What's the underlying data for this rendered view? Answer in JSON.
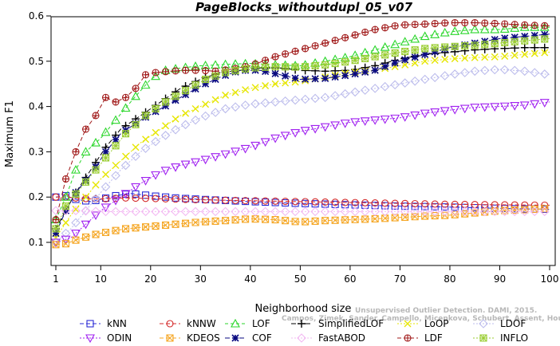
{
  "chart_data": {
    "type": "line",
    "title": "PageBlocks_withoutdupl_05_v07",
    "xlabel": "Neighborhood size",
    "ylabel": "Maximum F1",
    "xlim": [
      1,
      100
    ],
    "ylim": [
      0.05,
      0.6
    ],
    "xticks": [
      1,
      10,
      20,
      30,
      40,
      50,
      60,
      70,
      80,
      90,
      100
    ],
    "yticks": [
      0.1,
      0.2,
      0.3,
      0.4,
      0.5,
      0.6
    ],
    "watermark": {
      "line1": "Unsupervised Outlier Detection. DAMI, 2015.",
      "line2": "Campos, Zimek, Sander, Campello, Micenkova, Schubert, Assent, Houle"
    },
    "legend_placement": "bottom",
    "series": [
      {
        "name": "kNN",
        "color": "#2a2ad6",
        "marker": "square",
        "dash": "5,3",
        "points": [
          [
            1,
            0.2
          ],
          [
            3,
            0.203
          ],
          [
            5,
            0.195
          ],
          [
            8,
            0.19
          ],
          [
            10,
            0.195
          ],
          [
            13,
            0.203
          ],
          [
            16,
            0.208
          ],
          [
            20,
            0.203
          ],
          [
            25,
            0.198
          ],
          [
            30,
            0.195
          ],
          [
            40,
            0.19
          ],
          [
            50,
            0.186
          ],
          [
            60,
            0.183
          ],
          [
            70,
            0.18
          ],
          [
            80,
            0.178
          ],
          [
            90,
            0.175
          ],
          [
            100,
            0.173
          ]
        ]
      },
      {
        "name": "kNNW",
        "color": "#d42a2a",
        "marker": "circle",
        "dash": "5,3",
        "points": [
          [
            1,
            0.2
          ],
          [
            3,
            0.2
          ],
          [
            5,
            0.198
          ],
          [
            8,
            0.196
          ],
          [
            10,
            0.196
          ],
          [
            15,
            0.198
          ],
          [
            20,
            0.197
          ],
          [
            30,
            0.194
          ],
          [
            40,
            0.192
          ],
          [
            50,
            0.19
          ],
          [
            60,
            0.188
          ],
          [
            70,
            0.186
          ],
          [
            80,
            0.184
          ],
          [
            90,
            0.183
          ],
          [
            100,
            0.182
          ]
        ]
      },
      {
        "name": "LOF",
        "color": "#2ad62a",
        "marker": "triangle",
        "dash": "4,3",
        "points": [
          [
            1,
            0.15
          ],
          [
            3,
            0.2
          ],
          [
            5,
            0.26
          ],
          [
            7,
            0.3
          ],
          [
            10,
            0.33
          ],
          [
            13,
            0.37
          ],
          [
            16,
            0.41
          ],
          [
            20,
            0.46
          ],
          [
            23,
            0.48
          ],
          [
            26,
            0.485
          ],
          [
            30,
            0.49
          ],
          [
            35,
            0.493
          ],
          [
            40,
            0.495
          ],
          [
            45,
            0.492
          ],
          [
            50,
            0.49
          ],
          [
            55,
            0.5
          ],
          [
            60,
            0.51
          ],
          [
            65,
            0.525
          ],
          [
            70,
            0.54
          ],
          [
            75,
            0.555
          ],
          [
            80,
            0.565
          ],
          [
            85,
            0.57
          ],
          [
            90,
            0.57
          ],
          [
            95,
            0.575
          ],
          [
            100,
            0.575
          ]
        ]
      },
      {
        "name": "SimplifiedLOF",
        "color": "#000000",
        "marker": "plus",
        "dash": "6,3",
        "points": [
          [
            1,
            0.13
          ],
          [
            3,
            0.17
          ],
          [
            5,
            0.21
          ],
          [
            8,
            0.26
          ],
          [
            11,
            0.31
          ],
          [
            14,
            0.35
          ],
          [
            18,
            0.38
          ],
          [
            22,
            0.41
          ],
          [
            26,
            0.44
          ],
          [
            30,
            0.46
          ],
          [
            34,
            0.475
          ],
          [
            38,
            0.48
          ],
          [
            42,
            0.485
          ],
          [
            46,
            0.485
          ],
          [
            50,
            0.48
          ],
          [
            55,
            0.478
          ],
          [
            60,
            0.48
          ],
          [
            65,
            0.49
          ],
          [
            70,
            0.505
          ],
          [
            75,
            0.515
          ],
          [
            80,
            0.52
          ],
          [
            85,
            0.525
          ],
          [
            90,
            0.528
          ],
          [
            95,
            0.53
          ],
          [
            100,
            0.53
          ]
        ]
      },
      {
        "name": "LoOP",
        "color": "#e6e600",
        "marker": "x",
        "dash": "2,2",
        "points": [
          [
            1,
            0.11
          ],
          [
            4,
            0.16
          ],
          [
            7,
            0.2
          ],
          [
            10,
            0.24
          ],
          [
            14,
            0.28
          ],
          [
            18,
            0.32
          ],
          [
            22,
            0.35
          ],
          [
            26,
            0.38
          ],
          [
            30,
            0.4
          ],
          [
            35,
            0.425
          ],
          [
            40,
            0.44
          ],
          [
            45,
            0.45
          ],
          [
            50,
            0.455
          ],
          [
            55,
            0.465
          ],
          [
            60,
            0.475
          ],
          [
            65,
            0.48
          ],
          [
            70,
            0.49
          ],
          [
            75,
            0.5
          ],
          [
            80,
            0.505
          ],
          [
            85,
            0.508
          ],
          [
            90,
            0.51
          ],
          [
            95,
            0.515
          ],
          [
            100,
            0.52
          ]
        ]
      },
      {
        "name": "LDOF",
        "color": "#bcbcec",
        "marker": "diamond",
        "dash": "2,2",
        "points": [
          [
            1,
            0.1
          ],
          [
            4,
            0.13
          ],
          [
            7,
            0.17
          ],
          [
            10,
            0.21
          ],
          [
            14,
            0.26
          ],
          [
            18,
            0.3
          ],
          [
            22,
            0.33
          ],
          [
            26,
            0.355
          ],
          [
            30,
            0.375
          ],
          [
            35,
            0.395
          ],
          [
            40,
            0.405
          ],
          [
            45,
            0.41
          ],
          [
            50,
            0.415
          ],
          [
            55,
            0.42
          ],
          [
            60,
            0.43
          ],
          [
            65,
            0.44
          ],
          [
            70,
            0.45
          ],
          [
            75,
            0.46
          ],
          [
            80,
            0.47
          ],
          [
            85,
            0.478
          ],
          [
            90,
            0.482
          ],
          [
            95,
            0.478
          ],
          [
            100,
            0.47
          ]
        ]
      },
      {
        "name": "ODIN",
        "color": "#a020f0",
        "marker": "tri-down",
        "dash": "2,2",
        "points": [
          [
            1,
            0.1
          ],
          [
            4,
            0.11
          ],
          [
            7,
            0.14
          ],
          [
            10,
            0.17
          ],
          [
            14,
            0.2
          ],
          [
            18,
            0.23
          ],
          [
            22,
            0.255
          ],
          [
            26,
            0.27
          ],
          [
            30,
            0.28
          ],
          [
            35,
            0.295
          ],
          [
            40,
            0.31
          ],
          [
            45,
            0.33
          ],
          [
            50,
            0.345
          ],
          [
            55,
            0.355
          ],
          [
            60,
            0.365
          ],
          [
            65,
            0.37
          ],
          [
            70,
            0.375
          ],
          [
            75,
            0.385
          ],
          [
            80,
            0.392
          ],
          [
            85,
            0.398
          ],
          [
            90,
            0.4
          ],
          [
            95,
            0.403
          ],
          [
            100,
            0.41
          ]
        ]
      },
      {
        "name": "KDEOS",
        "color": "#f5a623",
        "marker": "square-x",
        "dash": "5,3",
        "points": [
          [
            1,
            0.095
          ],
          [
            3,
            0.097
          ],
          [
            5,
            0.105
          ],
          [
            8,
            0.115
          ],
          [
            10,
            0.12
          ],
          [
            15,
            0.13
          ],
          [
            20,
            0.135
          ],
          [
            25,
            0.14
          ],
          [
            30,
            0.145
          ],
          [
            35,
            0.148
          ],
          [
            40,
            0.152
          ],
          [
            45,
            0.15
          ],
          [
            50,
            0.145
          ],
          [
            55,
            0.148
          ],
          [
            60,
            0.15
          ],
          [
            65,
            0.152
          ],
          [
            70,
            0.155
          ],
          [
            75,
            0.158
          ],
          [
            80,
            0.16
          ],
          [
            85,
            0.165
          ],
          [
            90,
            0.17
          ],
          [
            95,
            0.172
          ],
          [
            100,
            0.175
          ]
        ]
      },
      {
        "name": "COF",
        "color": "#0a0a80",
        "marker": "star",
        "dash": "6,3",
        "points": [
          [
            1,
            0.12
          ],
          [
            3,
            0.17
          ],
          [
            5,
            0.21
          ],
          [
            8,
            0.25
          ],
          [
            11,
            0.3
          ],
          [
            14,
            0.34
          ],
          [
            18,
            0.37
          ],
          [
            22,
            0.395
          ],
          [
            26,
            0.42
          ],
          [
            30,
            0.445
          ],
          [
            34,
            0.465
          ],
          [
            38,
            0.48
          ],
          [
            42,
            0.48
          ],
          [
            46,
            0.47
          ],
          [
            50,
            0.46
          ],
          [
            55,
            0.462
          ],
          [
            60,
            0.47
          ],
          [
            65,
            0.48
          ],
          [
            70,
            0.5
          ],
          [
            75,
            0.515
          ],
          [
            80,
            0.53
          ],
          [
            85,
            0.54
          ],
          [
            90,
            0.55
          ],
          [
            95,
            0.555
          ],
          [
            100,
            0.56
          ]
        ]
      },
      {
        "name": "FastABOD",
        "color": "#f2b8f2",
        "marker": "diamond",
        "dash": "2,2",
        "points": [
          [
            1,
            0.17
          ],
          [
            5,
            0.17
          ],
          [
            10,
            0.168
          ],
          [
            20,
            0.168
          ],
          [
            30,
            0.168
          ],
          [
            40,
            0.168
          ],
          [
            50,
            0.168
          ],
          [
            60,
            0.168
          ],
          [
            70,
            0.168
          ],
          [
            80,
            0.168
          ],
          [
            90,
            0.168
          ],
          [
            100,
            0.168
          ]
        ]
      },
      {
        "name": "LDF",
        "color": "#a01818",
        "marker": "circle-plus",
        "dash": "5,3",
        "points": [
          [
            1,
            0.15
          ],
          [
            3,
            0.24
          ],
          [
            5,
            0.3
          ],
          [
            7,
            0.35
          ],
          [
            9,
            0.38
          ],
          [
            11,
            0.42
          ],
          [
            13,
            0.41
          ],
          [
            15,
            0.42
          ],
          [
            17,
            0.44
          ],
          [
            19,
            0.47
          ],
          [
            21,
            0.475
          ],
          [
            24,
            0.478
          ],
          [
            27,
            0.48
          ],
          [
            30,
            0.48
          ],
          [
            33,
            0.478
          ],
          [
            36,
            0.482
          ],
          [
            40,
            0.49
          ],
          [
            45,
            0.51
          ],
          [
            50,
            0.525
          ],
          [
            55,
            0.54
          ],
          [
            60,
            0.555
          ],
          [
            65,
            0.57
          ],
          [
            70,
            0.58
          ],
          [
            75,
            0.582
          ],
          [
            80,
            0.585
          ],
          [
            85,
            0.585
          ],
          [
            90,
            0.583
          ],
          [
            95,
            0.58
          ],
          [
            100,
            0.578
          ]
        ]
      },
      {
        "name": "INFLO",
        "color": "#9acd32",
        "marker": "square-star",
        "dash": "2,2",
        "points": [
          [
            1,
            0.13
          ],
          [
            3,
            0.18
          ],
          [
            6,
            0.22
          ],
          [
            9,
            0.26
          ],
          [
            12,
            0.3
          ],
          [
            15,
            0.34
          ],
          [
            19,
            0.38
          ],
          [
            23,
            0.41
          ],
          [
            27,
            0.435
          ],
          [
            31,
            0.46
          ],
          [
            35,
            0.475
          ],
          [
            40,
            0.485
          ],
          [
            45,
            0.488
          ],
          [
            50,
            0.487
          ],
          [
            55,
            0.492
          ],
          [
            60,
            0.5
          ],
          [
            65,
            0.51
          ],
          [
            70,
            0.52
          ],
          [
            75,
            0.528
          ],
          [
            80,
            0.532
          ],
          [
            85,
            0.535
          ],
          [
            90,
            0.54
          ],
          [
            95,
            0.545
          ],
          [
            100,
            0.55
          ]
        ]
      }
    ],
    "legend_order": [
      "kNN",
      "kNNW",
      "LOF",
      "SimplifiedLOF",
      "LoOP",
      "LDOF",
      "ODIN",
      "KDEOS",
      "COF",
      "FastABOD",
      "LDF",
      "INFLO"
    ]
  }
}
